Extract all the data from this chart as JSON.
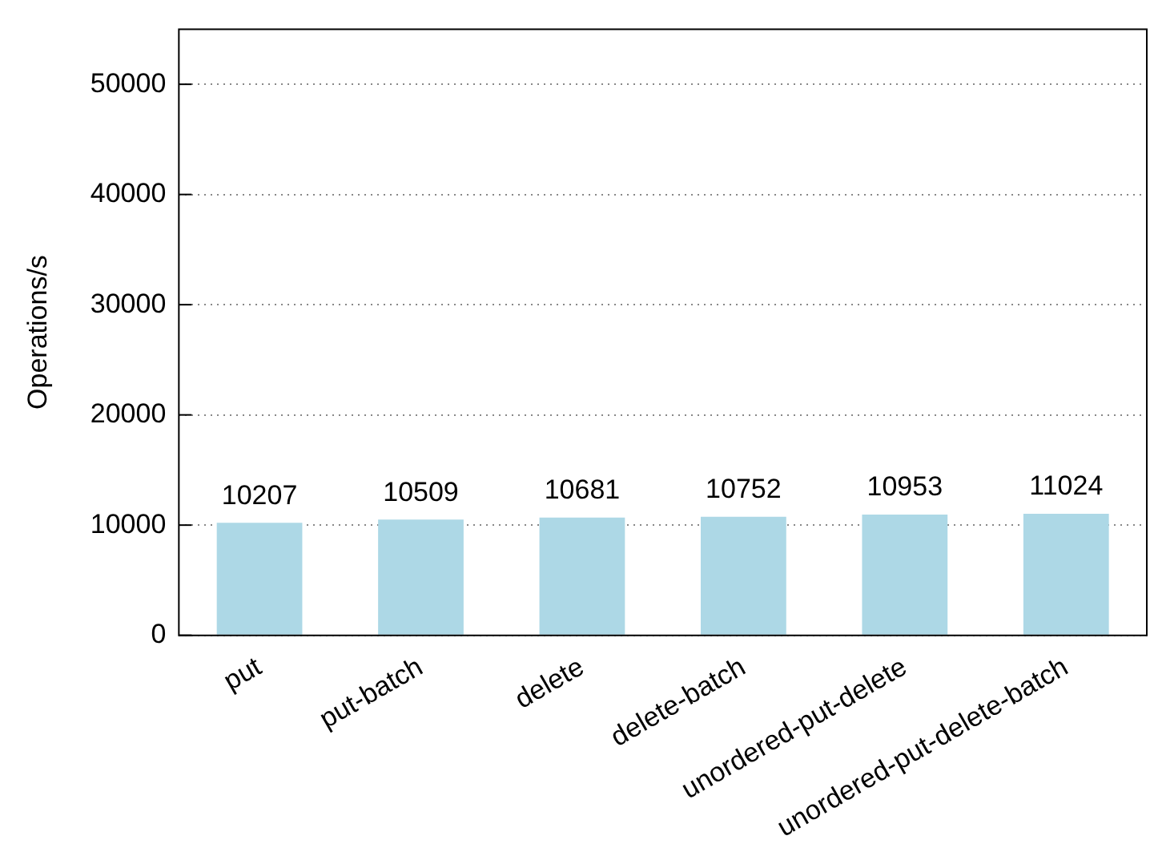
{
  "chart_data": {
    "type": "bar",
    "ylabel": "Operations/s",
    "categories": [
      "put",
      "put-batch",
      "delete",
      "delete-batch",
      "unordered-put-delete",
      "unordered-put-delete-batch"
    ],
    "values": [
      10207,
      10509,
      10681,
      10752,
      10953,
      11024
    ],
    "color": "#add8e6",
    "ylim": [
      0,
      55000
    ],
    "yticks": [
      0,
      10000,
      20000,
      30000,
      40000,
      50000
    ],
    "grid": "y",
    "data_labels": true,
    "legend": false
  }
}
